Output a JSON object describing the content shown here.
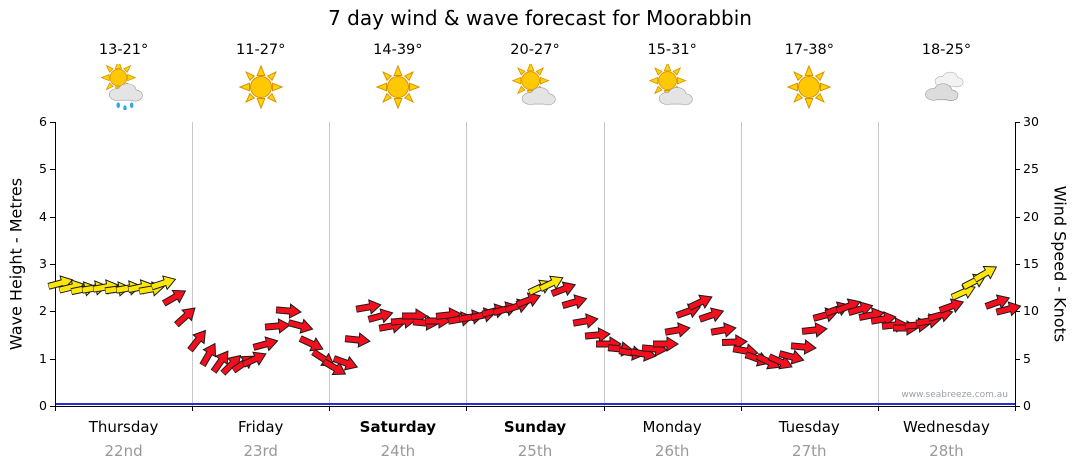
{
  "title": "7 day wind & wave forecast for Moorabbin",
  "watermark": "www.seabreeze.com.au",
  "left_axis": {
    "title": "Wave Height - Metres",
    "ticks": [
      0,
      1,
      2,
      3,
      4,
      5,
      6
    ]
  },
  "right_axis": {
    "title": "Wind Speed - Knots",
    "ticks": [
      0,
      5,
      10,
      15,
      20,
      25,
      30
    ]
  },
  "days": [
    {
      "name": "Thursday",
      "date": "22nd",
      "temp": "13-21°",
      "icon": "sun-showers",
      "bold": false
    },
    {
      "name": "Friday",
      "date": "23rd",
      "temp": "11-27°",
      "icon": "sunny",
      "bold": false
    },
    {
      "name": "Saturday",
      "date": "24th",
      "temp": "14-39°",
      "icon": "sunny",
      "bold": true
    },
    {
      "name": "Sunday",
      "date": "25th",
      "temp": "20-27°",
      "icon": "partly-cloudy",
      "bold": true
    },
    {
      "name": "Monday",
      "date": "26th",
      "temp": "15-31°",
      "icon": "partly-cloudy",
      "bold": false
    },
    {
      "name": "Tuesday",
      "date": "27th",
      "temp": "17-38°",
      "icon": "sunny",
      "bold": false
    },
    {
      "name": "Wednesday",
      "date": "28th",
      "temp": "18-25°",
      "icon": "cloudy",
      "bold": false
    }
  ],
  "chart_data": {
    "type": "scatter",
    "marker": "wind-arrow",
    "x_unit": "hours",
    "x_range": [
      0,
      168
    ],
    "hours_per_day": 24,
    "y_right_knots_range": [
      0,
      30
    ],
    "y_left_metres_range": [
      0,
      6
    ],
    "grid": "vertical-day-separators-only",
    "wave_height_m": {
      "series": "flat",
      "value": 0.05
    },
    "colors": {
      "arrow_yellow": "#ffe60a",
      "arrow_red": "#f50f1e",
      "wave_line": "#2b2bd5",
      "grid": "#c9c9c9",
      "date_text": "#999999"
    },
    "wind_knots": {
      "point_format": [
        "hour",
        "knots",
        "color(y=yellow,r=red)",
        "angle_deg"
      ],
      "points": [
        [
          0,
          13,
          "y",
          -15
        ],
        [
          2,
          12.6,
          "y",
          -14
        ],
        [
          4,
          12.4,
          "y",
          -12
        ],
        [
          6,
          12.5,
          "y",
          -10
        ],
        [
          8,
          12.6,
          "y",
          -10
        ],
        [
          10,
          12.4,
          "y",
          -8
        ],
        [
          12,
          12.5,
          "y",
          -10
        ],
        [
          14,
          12.6,
          "y",
          -12
        ],
        [
          16,
          12.4,
          "y",
          -10
        ],
        [
          18,
          13,
          "y",
          -18
        ],
        [
          20,
          11.5,
          "r",
          -30
        ],
        [
          22,
          9.5,
          "r",
          -42
        ],
        [
          24,
          7,
          "r",
          -52
        ],
        [
          26,
          5.5,
          "r",
          -60
        ],
        [
          28,
          4.8,
          "r",
          -55
        ],
        [
          30,
          4.4,
          "r",
          -45
        ],
        [
          32,
          4.5,
          "r",
          -35
        ],
        [
          34,
          5,
          "r",
          -25
        ],
        [
          36,
          6.5,
          "r",
          -15
        ],
        [
          38,
          8.5,
          "r",
          -5
        ],
        [
          40,
          10,
          "r",
          5
        ],
        [
          42,
          8.5,
          "r",
          15
        ],
        [
          44,
          6.5,
          "r",
          25
        ],
        [
          46,
          5,
          "r",
          33
        ],
        [
          48,
          4,
          "r",
          30
        ],
        [
          50,
          4.5,
          "r",
          20
        ],
        [
          52,
          7,
          "r",
          6
        ],
        [
          54,
          10.5,
          "r",
          -10
        ],
        [
          56,
          9.5,
          "r",
          -15
        ],
        [
          58,
          8.5,
          "r",
          -10
        ],
        [
          60,
          9,
          "r",
          -5
        ],
        [
          62,
          9.5,
          "r",
          0
        ],
        [
          64,
          8.8,
          "r",
          5
        ],
        [
          66,
          9,
          "r",
          0
        ],
        [
          68,
          9.6,
          "r",
          -6
        ],
        [
          70,
          9.2,
          "r",
          -10
        ],
        [
          72,
          9.4,
          "r",
          -10
        ],
        [
          74,
          9.6,
          "r",
          -12
        ],
        [
          76,
          10,
          "r",
          -14
        ],
        [
          78,
          10.2,
          "r",
          -16
        ],
        [
          80,
          10.6,
          "r",
          -18
        ],
        [
          82,
          11.2,
          "r",
          -21
        ],
        [
          84,
          12.6,
          "y",
          -25
        ],
        [
          86,
          13,
          "y",
          -26
        ],
        [
          88,
          12.4,
          "r",
          -21
        ],
        [
          90,
          11,
          "r",
          -16
        ],
        [
          92,
          9,
          "r",
          -10
        ],
        [
          94,
          7.5,
          "r",
          -5
        ],
        [
          96,
          6.6,
          "r",
          0
        ],
        [
          98,
          6,
          "r",
          6
        ],
        [
          100,
          5.6,
          "r",
          10
        ],
        [
          102,
          5.5,
          "r",
          10
        ],
        [
          104,
          6,
          "r",
          5
        ],
        [
          106,
          6.6,
          "r",
          0
        ],
        [
          108,
          8,
          "r",
          -10
        ],
        [
          110,
          10,
          "r",
          -20
        ],
        [
          112,
          11,
          "r",
          -25
        ],
        [
          114,
          9.6,
          "r",
          -19
        ],
        [
          116,
          8,
          "r",
          -10
        ],
        [
          118,
          6.8,
          "r",
          -2
        ],
        [
          120,
          5.8,
          "r",
          10
        ],
        [
          122,
          5,
          "r",
          20
        ],
        [
          124,
          4.6,
          "r",
          26
        ],
        [
          126,
          4.6,
          "r",
          24
        ],
        [
          128,
          5.2,
          "r",
          15
        ],
        [
          130,
          6.2,
          "r",
          5
        ],
        [
          132,
          8,
          "r",
          -6
        ],
        [
          134,
          9.6,
          "r",
          -15
        ],
        [
          136,
          10.2,
          "r",
          -20
        ],
        [
          138,
          10.6,
          "r",
          -21
        ],
        [
          140,
          10.2,
          "r",
          -16
        ],
        [
          142,
          9.6,
          "r",
          -11
        ],
        [
          144,
          9.2,
          "r",
          -10
        ],
        [
          146,
          8.6,
          "r",
          -6
        ],
        [
          148,
          8.2,
          "r",
          0
        ],
        [
          150,
          8.6,
          "r",
          -5
        ],
        [
          152,
          9,
          "r",
          -10
        ],
        [
          154,
          9.6,
          "r",
          -15
        ],
        [
          156,
          10.6,
          "r",
          -20
        ],
        [
          158,
          12,
          "y",
          -24
        ],
        [
          160,
          13.2,
          "y",
          -27
        ],
        [
          162,
          14,
          "y",
          -30
        ],
        [
          164,
          11,
          "r",
          -20
        ],
        [
          166,
          10.2,
          "r",
          -14
        ]
      ]
    }
  }
}
